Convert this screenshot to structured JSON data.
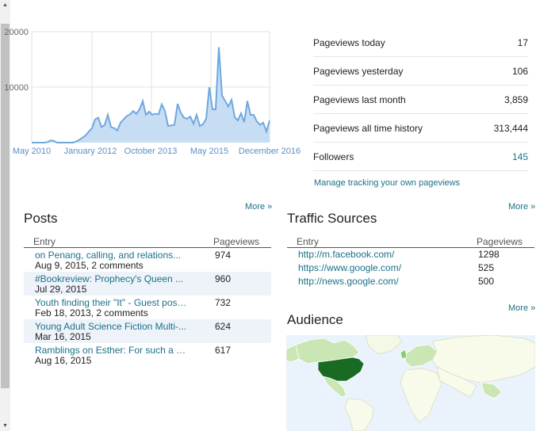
{
  "chart_data": {
    "type": "area",
    "x_tick_labels": [
      "May 2010",
      "January 2012",
      "October 2013",
      "May 2015",
      "December 2016"
    ],
    "y_tick_labels": [
      "20000",
      "10000"
    ],
    "ylim": [
      0,
      20000
    ],
    "grid": true,
    "values": [
      0,
      0,
      0,
      0,
      0,
      100,
      400,
      300,
      0,
      0,
      0,
      0,
      0,
      0,
      200,
      500,
      900,
      1300,
      2000,
      2600,
      4200,
      4500,
      2800,
      3200,
      5000,
      2800,
      2600,
      2200,
      3600,
      4200,
      4800,
      5100,
      5700,
      5200,
      6000,
      7500,
      5000,
      5600,
      5000,
      5200,
      5100,
      6900,
      5700,
      3000,
      3100,
      3200,
      7000,
      5400,
      4500,
      4300,
      4700,
      3400,
      5000,
      3000,
      3300,
      4300,
      10000,
      6000,
      6000,
      17200,
      8500,
      7500,
      6500,
      7700,
      4600,
      4000,
      5300,
      3700,
      7500,
      5000,
      5000,
      3800,
      3200,
      3600,
      2000,
      4000
    ],
    "colors": {
      "line": "#6ea8e0",
      "fill": "#c7ddf3"
    }
  },
  "stats": {
    "rows": [
      {
        "label": "Pageviews today",
        "value": "17"
      },
      {
        "label": "Pageviews yesterday",
        "value": "106"
      },
      {
        "label": "Pageviews last month",
        "value": "3,859"
      },
      {
        "label": "Pageviews all time history",
        "value": "313,444"
      },
      {
        "label": "Followers",
        "value": "145"
      }
    ],
    "manage_link": "Manage tracking your own pageviews"
  },
  "posts": {
    "more": "More »",
    "title": "Posts",
    "col_entry": "Entry",
    "col_pageviews": "Pageviews",
    "rows": [
      {
        "title": "on Penang, calling, and relations...",
        "meta": "Aug 9, 2015, 2 comments",
        "pageviews": "974"
      },
      {
        "title": "#Bookreview: Prophecy's Queen ...",
        "meta": "Jul 29, 2015",
        "pageviews": "960"
      },
      {
        "title": "Youth finding their \"It\" - Guest post ...",
        "meta": "Feb 18, 2013, 2 comments",
        "pageviews": "732"
      },
      {
        "title": "Young Adult Science Fiction Multi-...",
        "meta": "Mar 16, 2015",
        "pageviews": "624"
      },
      {
        "title": "Ramblings on Esther: For such a ti...",
        "meta": "Aug 16, 2015",
        "pageviews": "617"
      }
    ]
  },
  "traffic": {
    "more": "More »",
    "title": "Traffic Sources",
    "col_entry": "Entry",
    "col_pageviews": "Pageviews",
    "rows": [
      {
        "url": "http://m.facebook.com/",
        "pageviews": "1298"
      },
      {
        "url": "https://www.google.com/",
        "pageviews": "525"
      },
      {
        "url": "http://news.google.com/",
        "pageviews": "500"
      }
    ]
  },
  "audience": {
    "more": "More »",
    "title": "Audience",
    "colors": {
      "ocean": "#eaf3fb",
      "land": "#f8fbea",
      "light": "#c9e6b4",
      "mid": "#8ccb72",
      "top": "#196b23"
    }
  },
  "scrollbar": {
    "up_icon": "▲",
    "down_icon": "▼"
  }
}
